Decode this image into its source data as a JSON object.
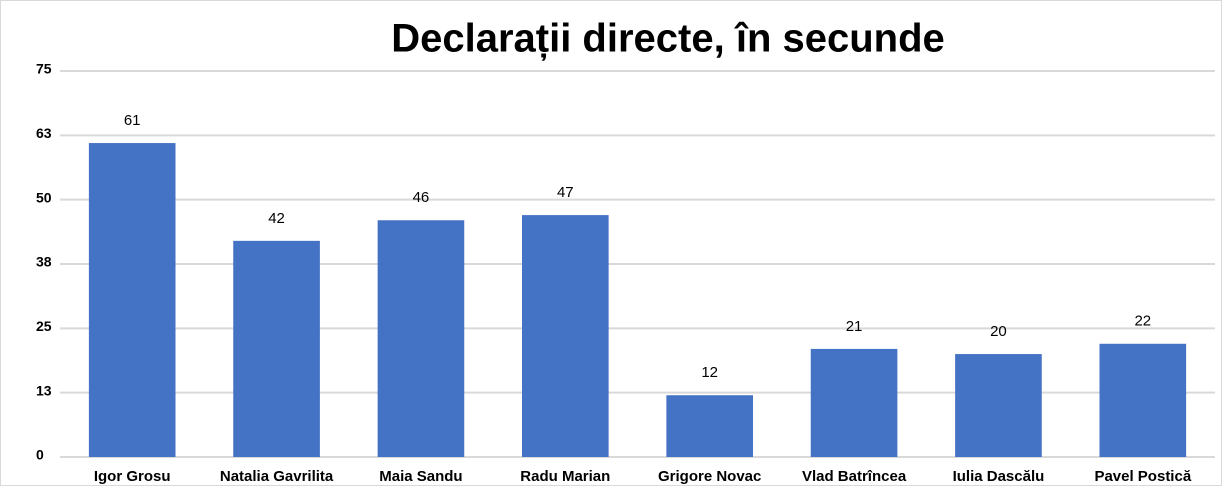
{
  "chart_data": {
    "type": "bar",
    "title": "Declarații directe, în secunde",
    "categories": [
      "Igor Grosu",
      "Natalia Gavrilita",
      "Maia Sandu",
      "Radu Marian",
      "Grigore Novac",
      "Vlad Batrîncea",
      "Iulia Dascălu",
      "Pavel Postică"
    ],
    "values": [
      61,
      42,
      46,
      47,
      12,
      21,
      20,
      22
    ],
    "color": "#4472c4",
    "ylim": [
      0,
      75
    ],
    "yticks": [
      0,
      {
        "value": 12.5,
        "label": "13"
      },
      25,
      {
        "value": 37.5,
        "label": "38"
      },
      50,
      {
        "value": 62.5,
        "label": "63"
      },
      75
    ],
    "grid": true
  }
}
